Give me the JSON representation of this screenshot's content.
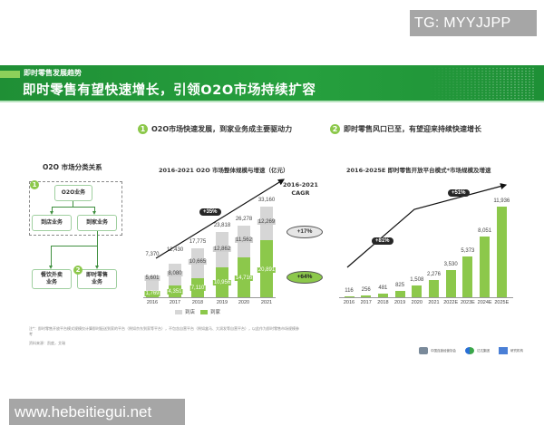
{
  "watermarks": {
    "top": "TG: MYYJJPP",
    "bottom": "www.hebeitiegui.net"
  },
  "banner": {
    "subtitle": "即时零售发展趋势",
    "title": "即时零售有望快速增长，引领O2O市场持续扩容"
  },
  "sections": [
    {
      "number": "1",
      "text": "O2O市场快速发展，到家业务成主要驱动力"
    },
    {
      "number": "2",
      "text": "即时零售风口已至，有望迎来持续快速增长"
    }
  ],
  "diagram": {
    "title": "O2O 市场分类关系",
    "badge1": "1",
    "badge2": "2",
    "nodes": {
      "o2o": "O2O业务",
      "in_store": "到店业务",
      "to_home": "到家业务",
      "food_delivery": "餐饮外卖\n业务",
      "instant_retail": "即时零售\n业务"
    }
  },
  "chart_data": [
    {
      "type": "bar",
      "title": "2016-2021 O2O 市场整体规模与增速（亿元）",
      "categories": [
        "2016",
        "2017",
        "2018",
        "2019",
        "2020",
        "2021"
      ],
      "series": [
        {
          "name": "到店",
          "color": "#d6d6d6",
          "values": [
            5601,
            8080,
            10665,
            12862,
            11562,
            12269
          ]
        },
        {
          "name": "到家",
          "color": "#8cc84b",
          "values": [
            1769,
            4351,
            7110,
            10956,
            14716,
            20891
          ]
        }
      ],
      "totals": [
        "7,370",
        "12,430",
        "17,775",
        "23,818",
        "26,278",
        "33,160"
      ],
      "grey_labels": [
        "5,601",
        "8,080",
        "10,665",
        "12,862",
        "11,562",
        "12,269"
      ],
      "green_labels": [
        "1,769",
        "4,351",
        "7,110",
        "10,956",
        "14,716",
        "20,891"
      ],
      "stacked": true,
      "growth_arrow_label": "+35%",
      "cagr": {
        "title_line1": "2016-2021",
        "title_line2": "CAGR",
        "grey": "+17%",
        "green": "+64%"
      },
      "legend": [
        "到店",
        "到家"
      ]
    },
    {
      "type": "bar",
      "title": "2016-2025E 即时零售开放平台模式*市场规模及增速",
      "categories": [
        "2016",
        "2017",
        "2018",
        "2019",
        "2020",
        "2021",
        "2022E",
        "2023E",
        "2024E",
        "2025E"
      ],
      "values": [
        116,
        256,
        481,
        825,
        1508,
        2276,
        3530,
        5373,
        8051,
        11936
      ],
      "labels": [
        "116",
        "256",
        "481",
        "825",
        "1,508",
        "2,276",
        "3,530",
        "5,373",
        "8,051",
        "11,936"
      ],
      "color": "#8cc84b",
      "growth_arrow_labels": [
        "+81%",
        "+51%"
      ]
    }
  ],
  "footnote": "注*：即时零售开放平台模式规模仅计算即时配送到家的平台（例如京东到家等平台），不包含自营平台（例如盒马、大润发等自营平台），以此作为即时零售市场规模参考",
  "source": "资料来源：凯度，艾瑞",
  "logos": [
    {
      "name": "中国连锁经营协会",
      "sub": "China Chain Store & Franchise Association"
    },
    {
      "name": "达达集团",
      "sub": "DADA GROUP"
    },
    {
      "name": "研究机构",
      "sub": ""
    }
  ]
}
